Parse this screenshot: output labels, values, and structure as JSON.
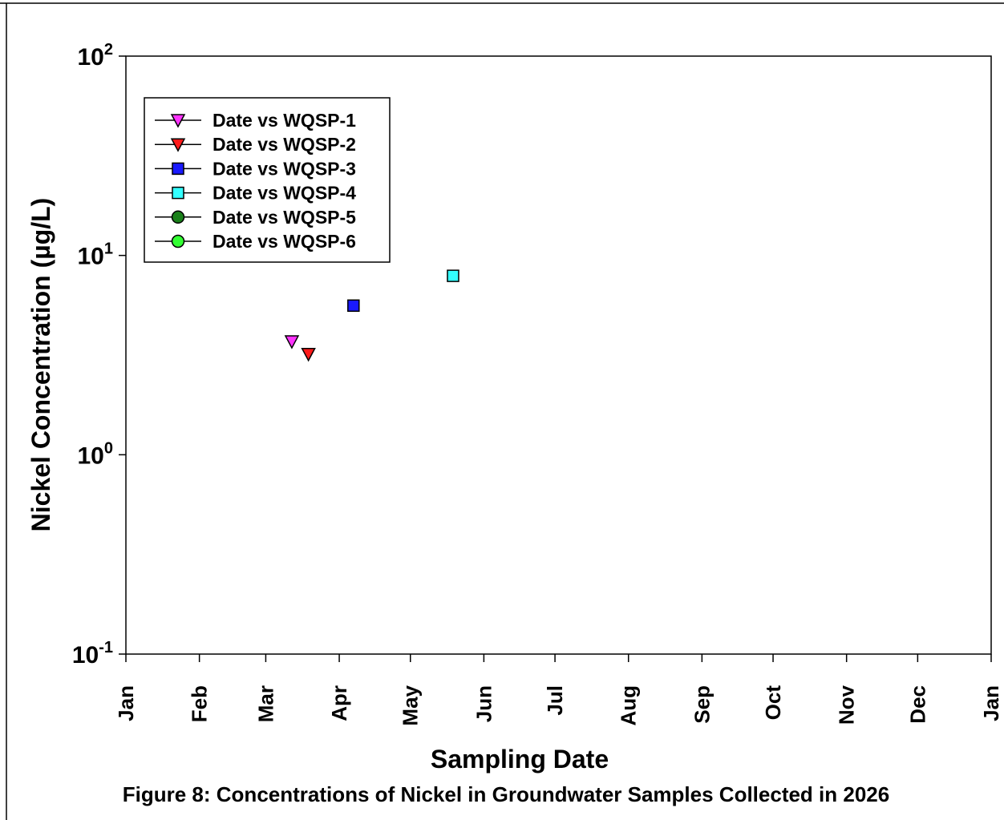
{
  "caption": "Figure 8: Concentrations of Nickel in Groundwater Samples Collected in 2026",
  "chart_data": {
    "type": "scatter",
    "xlabel": "Sampling Date",
    "ylabel": "Nickel Concentration (µg/L)",
    "yscale": "log",
    "ylim": [
      0.1,
      100
    ],
    "y_ticks": [
      {
        "base": "10",
        "exp": "-1",
        "value": 0.1
      },
      {
        "base": "10",
        "exp": "0",
        "value": 1
      },
      {
        "base": "10",
        "exp": "1",
        "value": 10
      },
      {
        "base": "10",
        "exp": "2",
        "value": 100
      }
    ],
    "xlim": [
      "2026-01-01",
      "2027-01-01"
    ],
    "x_tick_labels": [
      "Jan",
      "Feb",
      "Mar",
      "Apr",
      "May",
      "Jun",
      "Jul",
      "Aug",
      "Sep",
      "Oct",
      "Nov",
      "Dec",
      "Jan"
    ],
    "grid": false,
    "legend_position": "top-left",
    "series": [
      {
        "name": "Date vs WQSP-1",
        "marker": "triangle-down",
        "color": "#ff33ff",
        "points": [
          {
            "x": "2026-03-12",
            "y": 3.7
          }
        ]
      },
      {
        "name": "Date vs WQSP-2",
        "marker": "triangle-down",
        "color": "#ff1a1a",
        "points": [
          {
            "x": "2026-03-19",
            "y": 3.2
          }
        ]
      },
      {
        "name": "Date vs WQSP-3",
        "marker": "square",
        "color": "#1a1aff",
        "points": [
          {
            "x": "2026-04-07",
            "y": 5.6
          }
        ]
      },
      {
        "name": "Date vs WQSP-4",
        "marker": "square",
        "color": "#33ffff",
        "points": [
          {
            "x": "2026-05-19",
            "y": 7.9
          }
        ]
      },
      {
        "name": "Date vs WQSP-5",
        "marker": "circle",
        "color": "#1a801a",
        "points": []
      },
      {
        "name": "Date vs WQSP-6",
        "marker": "circle",
        "color": "#33ff33",
        "points": []
      }
    ]
  }
}
